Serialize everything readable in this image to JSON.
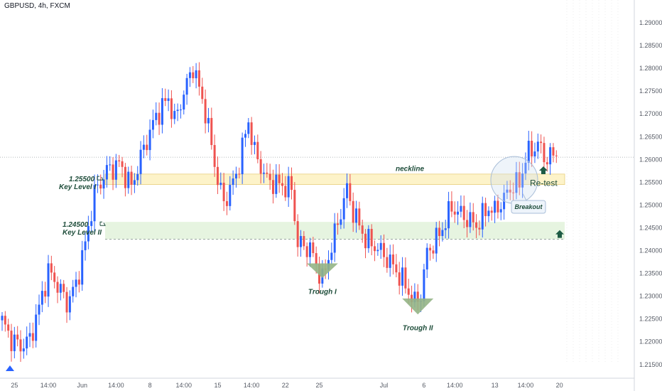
{
  "header": {
    "symbol": "GBPUSD, 4h, FXCM"
  },
  "chart_data": {
    "type": "candlestick",
    "title": "",
    "ylim": [
      1.212,
      1.295
    ],
    "y_ticks": [
      "1.21500",
      "1.22000",
      "1.22500",
      "1.23000",
      "1.23500",
      "1.24000",
      "1.24500",
      "1.25000",
      "1.25500",
      "1.26000",
      "1.26500",
      "1.27000",
      "1.27500",
      "1.28000",
      "1.28500",
      "1.29000"
    ],
    "y_tick_values": [
      1.215,
      1.22,
      1.225,
      1.23,
      1.235,
      1.24,
      1.245,
      1.25,
      1.255,
      1.26,
      1.265,
      1.27,
      1.275,
      1.28,
      1.285,
      1.29
    ],
    "x_ticks": [
      "25",
      "14:00",
      "Jun",
      "14:00",
      "8",
      "14:00",
      "15",
      "14:00",
      "22",
      "25",
      "Jul",
      "6",
      "14:00",
      "13",
      "14:00",
      "20"
    ],
    "x_tick_candle_index": [
      4,
      15,
      26,
      37,
      48,
      59,
      70,
      81,
      92,
      103,
      124,
      137,
      147,
      160,
      170,
      181
    ],
    "current_price": 1.2605,
    "colors": {
      "up": "#2962ff",
      "down": "#ef5350",
      "text": "#1e4d3a",
      "key1_fill": "#fdf3c9",
      "key2_fill": "#e6f4e0",
      "trough": "#93b485",
      "circle": "#a9bed8"
    },
    "key_levels": [
      {
        "label": "Key Level I",
        "value_text": "1.25500",
        "low": 1.2545,
        "high": 1.2568
      },
      {
        "label": "Key Level II",
        "value_text": "1.24500",
        "low": 1.2425,
        "high": 1.2463
      }
    ],
    "annotations": {
      "neckline": "neckline",
      "trough1": "Trough I",
      "trough2": "Trough II",
      "breakout": "Breakout",
      "retest": "Re-test"
    },
    "candles_anchor_points": [
      [
        0,
        1.2245
      ],
      [
        3,
        1.2205
      ],
      [
        6,
        1.219
      ],
      [
        9,
        1.2205
      ],
      [
        12,
        1.2275
      ],
      [
        15,
        1.2355
      ],
      [
        18,
        1.2325
      ],
      [
        21,
        1.2285
      ],
      [
        24,
        1.2325
      ],
      [
        27,
        1.2415
      ],
      [
        30,
        1.2525
      ],
      [
        34,
        1.2575
      ],
      [
        38,
        1.259
      ],
      [
        42,
        1.254
      ],
      [
        46,
        1.2625
      ],
      [
        50,
        1.2695
      ],
      [
        54,
        1.2735
      ],
      [
        56,
        1.2685
      ],
      [
        60,
        1.2765
      ],
      [
        62,
        1.2805
      ],
      [
        66,
        1.2705
      ],
      [
        70,
        1.2555
      ],
      [
        72,
        1.2505
      ],
      [
        76,
        1.2565
      ],
      [
        80,
        1.2685
      ],
      [
        82,
        1.2615
      ],
      [
        86,
        1.2555
      ],
      [
        90,
        1.2545
      ],
      [
        94,
        1.2535
      ],
      [
        96,
        1.2415
      ],
      [
        100,
        1.2405
      ],
      [
        104,
        1.2335
      ],
      [
        108,
        1.2435
      ],
      [
        112,
        1.2535
      ],
      [
        114,
        1.2485
      ],
      [
        118,
        1.2425
      ],
      [
        122,
        1.2405
      ],
      [
        126,
        1.2375
      ],
      [
        130,
        1.2335
      ],
      [
        134,
        1.2285
      ],
      [
        136,
        1.2305
      ],
      [
        138,
        1.2395
      ],
      [
        142,
        1.2435
      ],
      [
        146,
        1.2495
      ],
      [
        150,
        1.2475
      ],
      [
        154,
        1.2455
      ],
      [
        158,
        1.2495
      ],
      [
        160,
        1.2485
      ],
      [
        164,
        1.2525
      ],
      [
        166,
        1.2545
      ],
      [
        168,
        1.2545
      ],
      [
        170,
        1.2605
      ],
      [
        174,
        1.2635
      ],
      [
        176,
        1.2605
      ],
      [
        178,
        1.2605
      ],
      [
        180,
        1.2615
      ]
    ]
  }
}
